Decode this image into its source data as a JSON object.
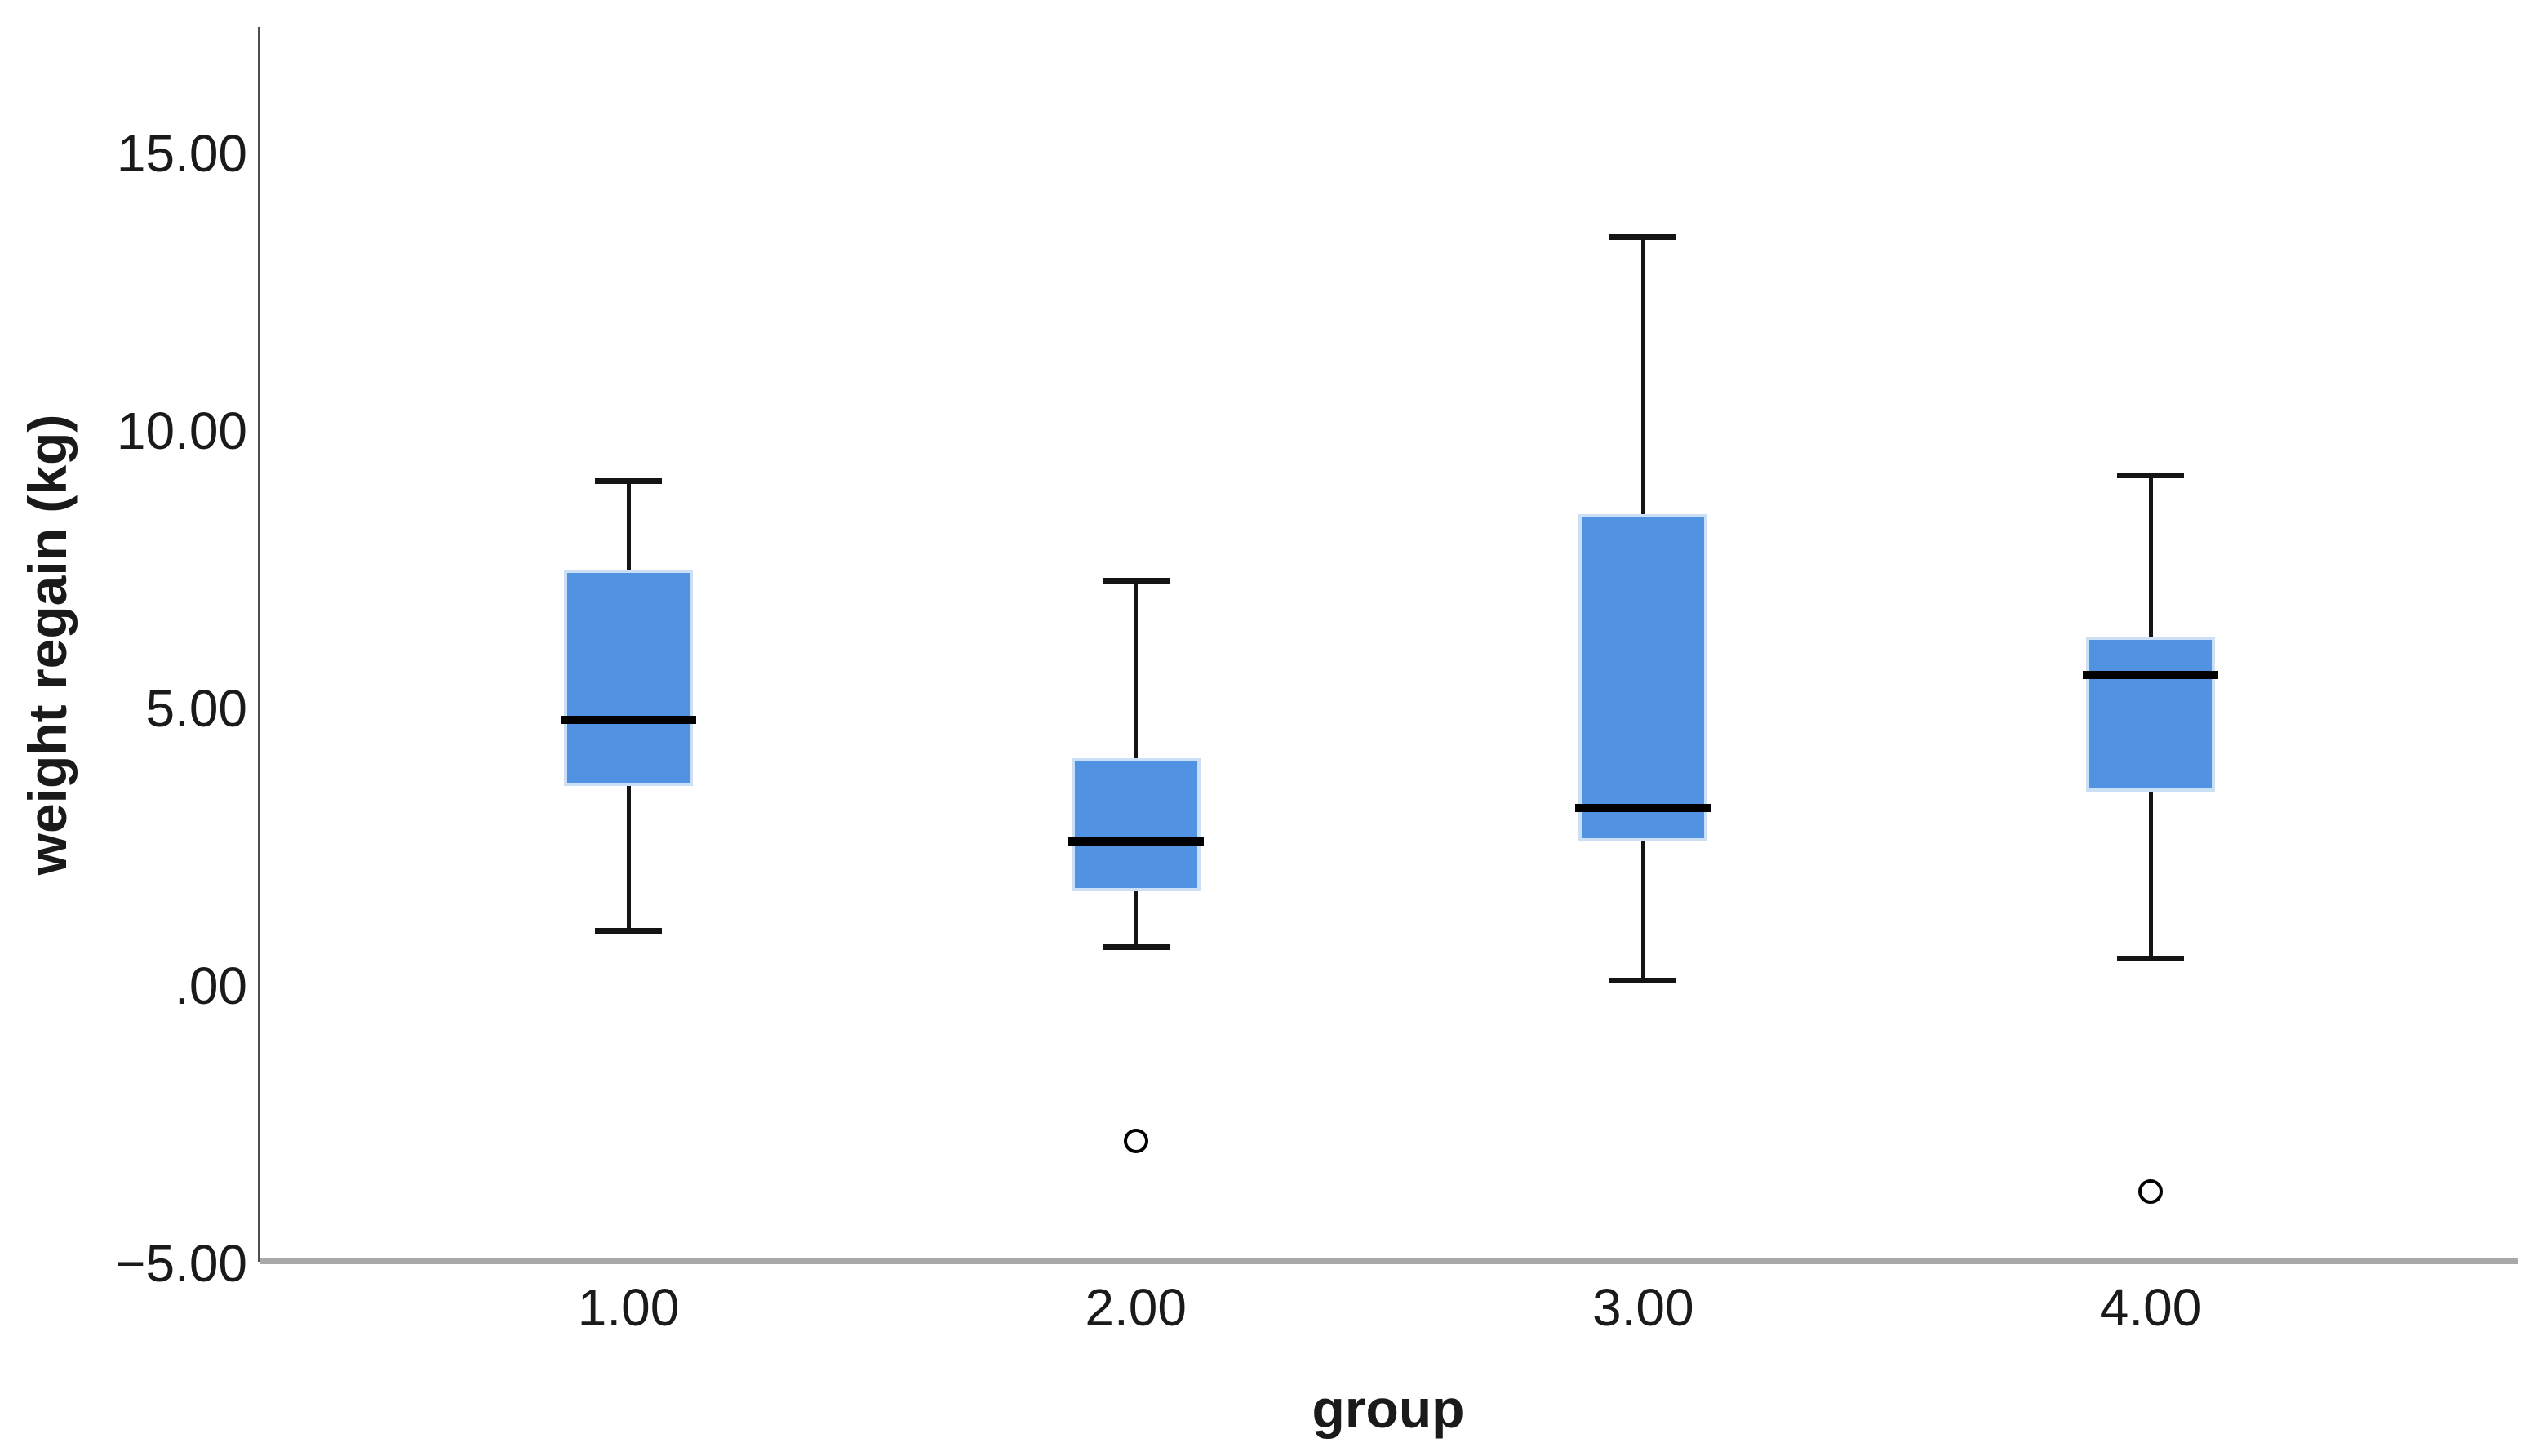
{
  "chart_data": {
    "type": "boxplot",
    "title": "",
    "xlabel": "group",
    "ylabel": "weight regain (kg)",
    "ylim": [
      -5,
      17.3
    ],
    "grid": false,
    "legend": false,
    "y_axis": {
      "ticks": [
        {
          "label": "15.00",
          "value": 15
        },
        {
          "label": "10.00",
          "value": 10
        },
        {
          "label": "5.00",
          "value": 5
        },
        {
          "label": ".00",
          "value": 0
        },
        {
          "label": "−5.00",
          "value": -5
        }
      ]
    },
    "categories": [
      "1.00",
      "2.00",
      "3.00",
      "4.00"
    ],
    "boxes": [
      {
        "group": "1.00",
        "whisker_low": 1.0,
        "q1": 3.6,
        "median": 4.8,
        "q3": 7.5,
        "whisker_high": 9.1,
        "outliers": []
      },
      {
        "group": "2.00",
        "whisker_low": 0.7,
        "q1": 1.7,
        "median": 2.6,
        "q3": 4.1,
        "whisker_high": 7.3,
        "outliers": [
          -2.8
        ]
      },
      {
        "group": "3.00",
        "whisker_low": 0.1,
        "q1": 2.6,
        "median": 3.2,
        "q3": 8.5,
        "whisker_high": 13.5,
        "outliers": []
      },
      {
        "group": "4.00",
        "whisker_low": 0.5,
        "q1": 3.5,
        "median": 5.6,
        "q3": 6.3,
        "whisker_high": 9.2,
        "outliers": [
          -3.7
        ]
      }
    ]
  },
  "colors": {
    "box_fill": "#5292E3",
    "box_border": "#CBDFF5",
    "median": "#000000",
    "whisker": "#141414",
    "outlier_stroke": "#000000",
    "y_axis_line": "#4D4D4D",
    "x_axis_line": "#A9A9A9",
    "text": "#1A1A1A"
  }
}
